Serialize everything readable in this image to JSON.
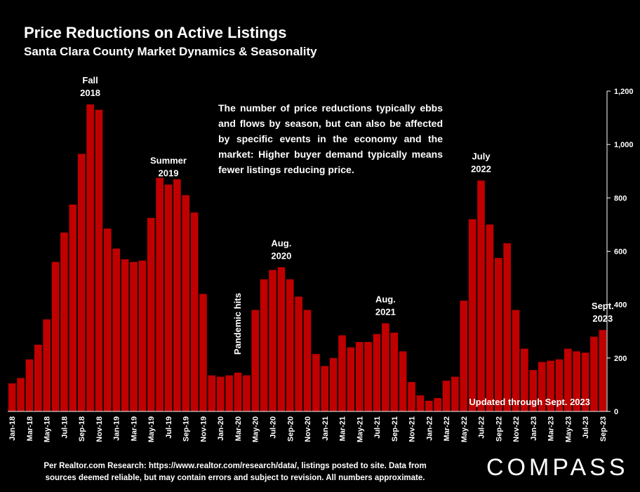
{
  "title": "Price Reductions on Active Listings",
  "subtitle": "Santa Clara County Market Dynamics & Seasonality",
  "description": "The number of price reductions typically ebbs and flows by season, but can also be affected by specific events in the economy and the market:  Higher buyer demand typically means fewer listings reducing price.",
  "footnote_line1": "Per Realtor.com Research:  https://www.realtor.com/research/data/, listings posted to site. Data from",
  "footnote_line2": "sources deemed reliable, but may contain errors and subject to revision. All numbers approximate.",
  "logo": "COMPASS",
  "colors": {
    "bar": "#c00000",
    "background": "#000000",
    "text": "#ffffff"
  },
  "chart_data": {
    "type": "bar",
    "title": "Price Reductions on Active Listings",
    "subtitle": "Santa Clara County Market Dynamics & Seasonality",
    "ylim": [
      0,
      1200
    ],
    "y_ticks": [
      0,
      200,
      400,
      600,
      800,
      1000,
      1200
    ],
    "y_tick_labels": [
      "0",
      "200",
      "400",
      "600",
      "800",
      "1,000",
      "1,200"
    ],
    "y_axis_side": "right",
    "grid": false,
    "categories": [
      "Jan-18",
      "Feb-18",
      "Mar-18",
      "Apr-18",
      "May-18",
      "Jun-18",
      "Jul-18",
      "Aug-18",
      "Sep-18",
      "Oct-18",
      "Nov-18",
      "Dec-18",
      "Jan-19",
      "Feb-19",
      "Mar-19",
      "Apr-19",
      "May-19",
      "Jun-19",
      "Jul-19",
      "Aug-19",
      "Sep-19",
      "Oct-19",
      "Nov-19",
      "Dec-19",
      "Jan-20",
      "Feb-20",
      "Mar-20",
      "Apr-20",
      "May-20",
      "Jun-20",
      "Jul-20",
      "Aug-20",
      "Sep-20",
      "Oct-20",
      "Nov-20",
      "Dec-20",
      "Jan-21",
      "Feb-21",
      "Mar-21",
      "Apr-21",
      "May-21",
      "Jun-21",
      "Jul-21",
      "Aug-21",
      "Sep-21",
      "Oct-21",
      "Nov-21",
      "Dec-21",
      "Jan-22",
      "Feb-22",
      "Mar-22",
      "Apr-22",
      "May-22",
      "Jun-22",
      "Jul-22",
      "Aug-22",
      "Sep-22",
      "Oct-22",
      "Nov-22",
      "Dec-22",
      "Jan-23",
      "Feb-23",
      "Mar-23",
      "Apr-23",
      "May-23",
      "Jun-23",
      "Jul-23",
      "Aug-23",
      "Sep-23"
    ],
    "values": [
      105,
      125,
      195,
      250,
      345,
      560,
      670,
      775,
      965,
      1150,
      1130,
      685,
      610,
      570,
      560,
      565,
      725,
      875,
      850,
      870,
      810,
      745,
      440,
      135,
      130,
      135,
      145,
      135,
      380,
      495,
      530,
      540,
      495,
      430,
      380,
      215,
      170,
      200,
      285,
      240,
      260,
      260,
      290,
      330,
      295,
      225,
      110,
      60,
      40,
      50,
      115,
      130,
      415,
      720,
      865,
      700,
      575,
      630,
      380,
      235,
      155,
      185,
      190,
      195,
      235,
      225,
      220,
      280,
      305
    ],
    "x_tick_labels": [
      "Jan-18",
      "Mar-18",
      "May-18",
      "Jul-18",
      "Sep-18",
      "Nov-18",
      "Jan-19",
      "Mar-19",
      "May-19",
      "Jul-19",
      "Sep-19",
      "Nov-19",
      "Jan-20",
      "Mar-20",
      "May-20",
      "Jul-20",
      "Sep-20",
      "Nov-20",
      "Jan-21",
      "Mar-21",
      "May-21",
      "Jul-21",
      "Sep-21",
      "Nov-21",
      "Jan-22",
      "Mar-22",
      "May-22",
      "Jul-22",
      "Sep-22",
      "Nov-22",
      "Jan-23",
      "Mar-23",
      "May-23",
      "Jul-23",
      "Sep-23"
    ],
    "annotations": [
      {
        "index": 9,
        "lines": [
          "Fall",
          "2018"
        ]
      },
      {
        "index": 18,
        "lines": [
          "Summer",
          "2019"
        ]
      },
      {
        "index": 31,
        "lines": [
          "Aug.",
          "2020"
        ]
      },
      {
        "index": 43,
        "lines": [
          "Aug.",
          "2021"
        ]
      },
      {
        "index": 54,
        "lines": [
          "July",
          "2022"
        ]
      },
      {
        "index": 68,
        "lines": [
          "Sept.",
          "2023"
        ]
      }
    ],
    "pandemic_label": "Pandemic hits",
    "updated_label": "Updated through Sept. 2023"
  }
}
